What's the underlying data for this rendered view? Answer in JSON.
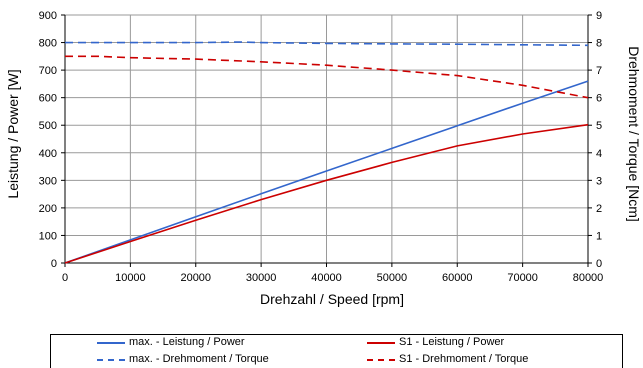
{
  "chart_data": {
    "type": "line",
    "xlabel": "Drehzahl / Speed [rpm]",
    "ylabel": "Leistung / Power [W]",
    "y2label": "Drehmoment / Torque [Ncm]",
    "xlim": [
      0,
      80000
    ],
    "ylim": [
      0,
      900
    ],
    "y2lim": [
      0,
      9
    ],
    "x_ticks": [
      "0",
      "10000",
      "20000",
      "30000",
      "40000",
      "50000",
      "60000",
      "70000",
      "80000"
    ],
    "y_ticks": [
      "0",
      "100",
      "200",
      "300",
      "400",
      "500",
      "600",
      "700",
      "800",
      "900"
    ],
    "y2_ticks": [
      "0",
      "1",
      "2",
      "3",
      "4",
      "5",
      "6",
      "7",
      "8",
      "9"
    ],
    "grid": true,
    "legend_position": "bottom",
    "series": [
      {
        "name": "max. - Leistung / Power",
        "axis": "left",
        "color": "#3366cc",
        "dash": "solid",
        "x": [
          0,
          10000,
          20000,
          30000,
          40000,
          50000,
          60000,
          70000,
          80000
        ],
        "y": [
          0,
          84,
          168,
          251,
          334,
          416,
          498,
          580,
          660
        ]
      },
      {
        "name": "max. - Drehmoment / Torque",
        "axis": "right",
        "color": "#3366cc",
        "dash": "dashed",
        "x": [
          0,
          10000,
          20000,
          27000,
          30000,
          40000,
          50000,
          60000,
          70000,
          80000
        ],
        "y": [
          8.0,
          8.0,
          8.0,
          8.02,
          8.0,
          7.97,
          7.95,
          7.94,
          7.92,
          7.9
        ]
      },
      {
        "name": "S1 - Leistung / Power",
        "axis": "left",
        "color": "#cc0000",
        "dash": "solid",
        "x": [
          0,
          10000,
          20000,
          30000,
          40000,
          50000,
          60000,
          70000,
          80000
        ],
        "y": [
          0,
          78,
          155,
          230,
          300,
          365,
          425,
          468,
          502
        ]
      },
      {
        "name": "S1 - Drehmoment / Torque",
        "axis": "right",
        "color": "#cc0000",
        "dash": "dashed",
        "x": [
          0,
          5000,
          10000,
          20000,
          30000,
          40000,
          50000,
          60000,
          70000,
          80000
        ],
        "y": [
          7.5,
          7.5,
          7.45,
          7.4,
          7.3,
          7.18,
          7.0,
          6.8,
          6.45,
          6.0
        ]
      }
    ]
  }
}
